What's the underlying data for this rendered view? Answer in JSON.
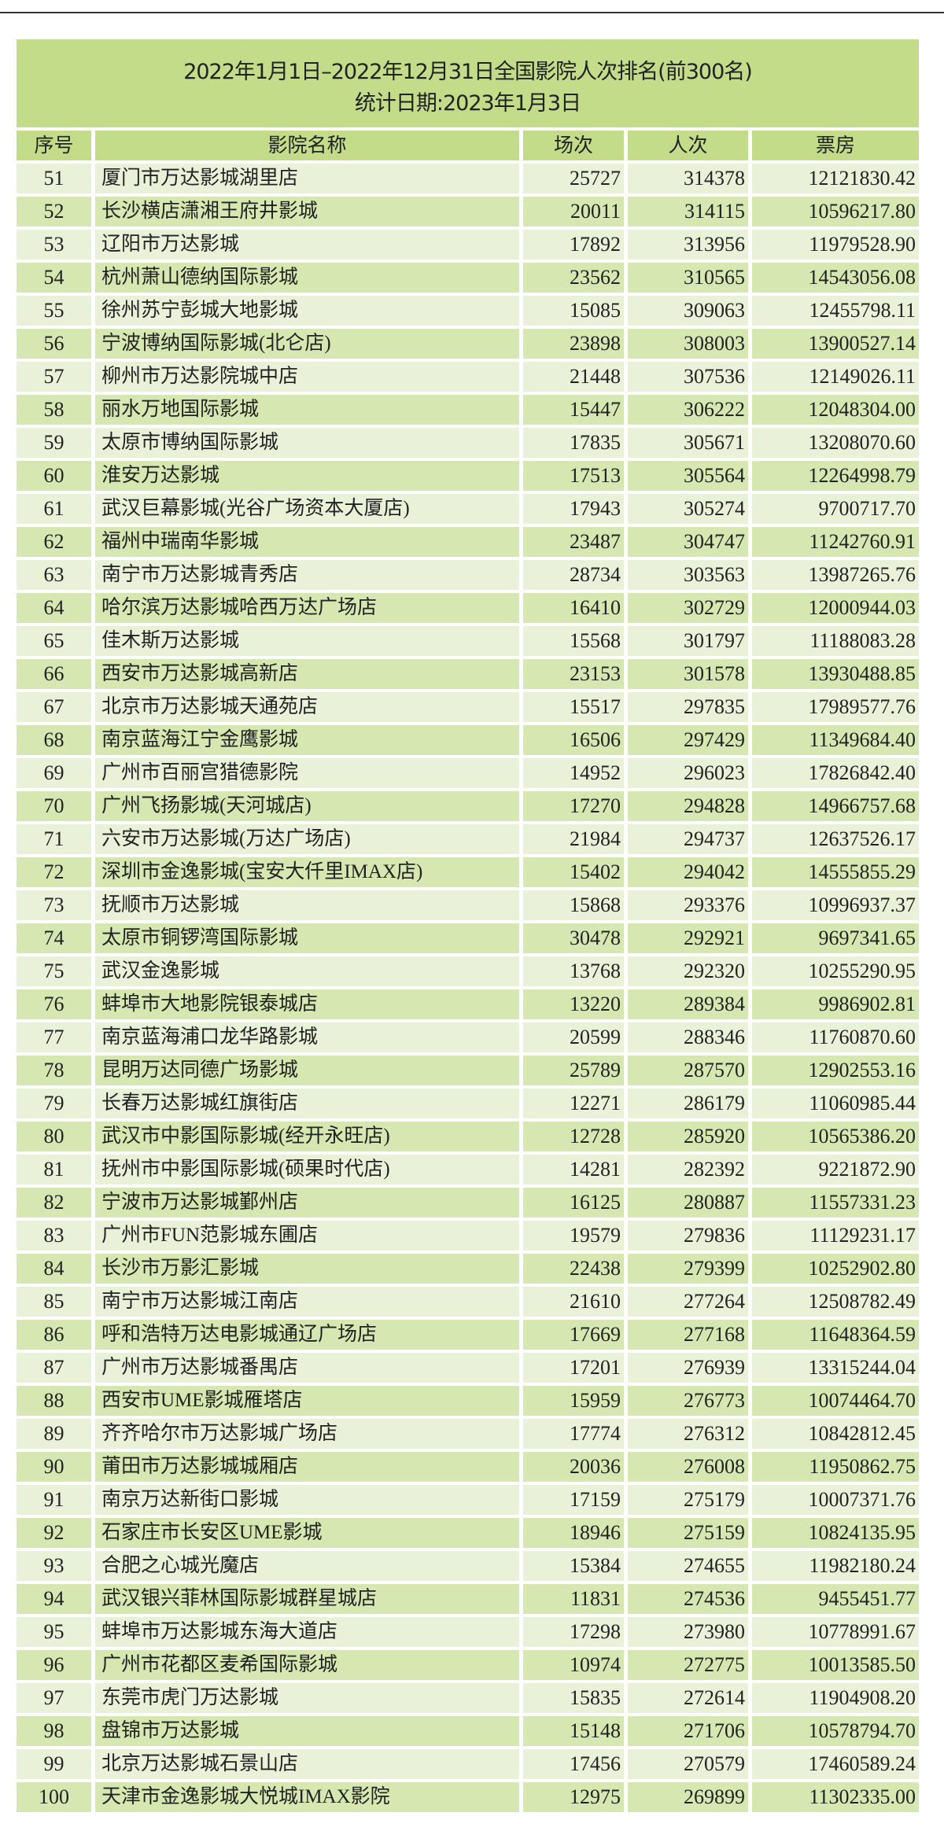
{
  "title": "2022年1月1日–2022年12月31日全国影院人次排名(前300名)",
  "subtitle": "统计日期:2023年1月3日",
  "colors": {
    "title_bg": "#c2dc8a",
    "row_dark": "#d6e7b1",
    "row_light": "#e9f2d9"
  },
  "headers": [
    "序号",
    "影院名称",
    "场次",
    "人次",
    "票房"
  ],
  "rows": [
    [
      "51",
      "厦门市万达影城湖里店",
      "25727",
      "314378",
      "12121830.42"
    ],
    [
      "52",
      "长沙横店潇湘王府井影城",
      "20011",
      "314115",
      "10596217.80"
    ],
    [
      "53",
      "辽阳市万达影城",
      "17892",
      "313956",
      "11979528.90"
    ],
    [
      "54",
      "杭州萧山德纳国际影城",
      "23562",
      "310565",
      "14543056.08"
    ],
    [
      "55",
      "徐州苏宁彭城大地影城",
      "15085",
      "309063",
      "12455798.11"
    ],
    [
      "56",
      "宁波博纳国际影城(北仑店)",
      "23898",
      "308003",
      "13900527.14"
    ],
    [
      "57",
      "柳州市万达影院城中店",
      "21448",
      "307536",
      "12149026.11"
    ],
    [
      "58",
      "丽水万地国际影城",
      "15447",
      "306222",
      "12048304.00"
    ],
    [
      "59",
      "太原市博纳国际影城",
      "17835",
      "305671",
      "13208070.60"
    ],
    [
      "60",
      "淮安万达影城",
      "17513",
      "305564",
      "12264998.79"
    ],
    [
      "61",
      "武汉巨幕影城(光谷广场资本大厦店)",
      "17943",
      "305274",
      "9700717.70"
    ],
    [
      "62",
      "福州中瑞南华影城",
      "23487",
      "304747",
      "11242760.91"
    ],
    [
      "63",
      "南宁市万达影城青秀店",
      "28734",
      "303563",
      "13987265.76"
    ],
    [
      "64",
      "哈尔滨万达影城哈西万达广场店",
      "16410",
      "302729",
      "12000944.03"
    ],
    [
      "65",
      "佳木斯万达影城",
      "15568",
      "301797",
      "11188083.28"
    ],
    [
      "66",
      "西安市万达影城高新店",
      "23153",
      "301578",
      "13930488.85"
    ],
    [
      "67",
      "北京市万达影城天通苑店",
      "15517",
      "297835",
      "17989577.76"
    ],
    [
      "68",
      "南京蓝海江宁金鹰影城",
      "16506",
      "297429",
      "11349684.40"
    ],
    [
      "69",
      "广州市百丽宫猎德影院",
      "14952",
      "296023",
      "17826842.40"
    ],
    [
      "70",
      "广州飞扬影城(天河城店)",
      "17270",
      "294828",
      "14966757.68"
    ],
    [
      "71",
      "六安市万达影城(万达广场店)",
      "21984",
      "294737",
      "12637526.17"
    ],
    [
      "72",
      "深圳市金逸影城(宝安大仟里IMAX店)",
      "15402",
      "294042",
      "14555855.29"
    ],
    [
      "73",
      "抚顺市万达影城",
      "15868",
      "293376",
      "10996937.37"
    ],
    [
      "74",
      "太原市铜锣湾国际影城",
      "30478",
      "292921",
      "9697341.65"
    ],
    [
      "75",
      "武汉金逸影城",
      "13768",
      "292320",
      "10255290.95"
    ],
    [
      "76",
      "蚌埠市大地影院银泰城店",
      "13220",
      "289384",
      "9986902.81"
    ],
    [
      "77",
      "南京蓝海浦口龙华路影城",
      "20599",
      "288346",
      "11760870.60"
    ],
    [
      "78",
      "昆明万达同德广场影城",
      "25789",
      "287570",
      "12902553.16"
    ],
    [
      "79",
      "长春万达影城红旗街店",
      "12271",
      "286179",
      "11060985.44"
    ],
    [
      "80",
      "武汉市中影国际影城(经开永旺店)",
      "12728",
      "285920",
      "10565386.20"
    ],
    [
      "81",
      "抚州市中影国际影城(硕果时代店)",
      "14281",
      "282392",
      "9221872.90"
    ],
    [
      "82",
      "宁波市万达影城鄞州店",
      "16125",
      "280887",
      "11557331.23"
    ],
    [
      "83",
      "广州市FUN范影城东圃店",
      "19579",
      "279836",
      "11129231.17"
    ],
    [
      "84",
      "长沙市万影汇影城",
      "22438",
      "279399",
      "10252902.80"
    ],
    [
      "85",
      "南宁市万达影城江南店",
      "21610",
      "277264",
      "12508782.49"
    ],
    [
      "86",
      "呼和浩特万达电影城通辽广场店",
      "17669",
      "277168",
      "11648364.59"
    ],
    [
      "87",
      "广州市万达影城番禺店",
      "17201",
      "276939",
      "13315244.04"
    ],
    [
      "88",
      "西安市UME影城雁塔店",
      "15959",
      "276773",
      "10074464.70"
    ],
    [
      "89",
      "齐齐哈尔市万达影城广场店",
      "17774",
      "276312",
      "10842812.45"
    ],
    [
      "90",
      "莆田市万达影城城厢店",
      "20036",
      "276008",
      "11950862.75"
    ],
    [
      "91",
      "南京万达新街口影城",
      "17159",
      "275179",
      "10007371.76"
    ],
    [
      "92",
      "石家庄市长安区UME影城",
      "18946",
      "275159",
      "10824135.95"
    ],
    [
      "93",
      "合肥之心城光魔店",
      "15384",
      "274655",
      "11982180.24"
    ],
    [
      "94",
      "武汉银兴菲林国际影城群星城店",
      "11831",
      "274536",
      "9455451.77"
    ],
    [
      "95",
      "蚌埠市万达影城东海大道店",
      "17298",
      "273980",
      "10778991.67"
    ],
    [
      "96",
      "广州市花都区麦希国际影城",
      "10974",
      "272775",
      "10013585.50"
    ],
    [
      "97",
      "东莞市虎门万达影城",
      "15835",
      "272614",
      "11904908.20"
    ],
    [
      "98",
      "盘锦市万达影城",
      "15148",
      "271706",
      "10578794.70"
    ],
    [
      "99",
      "北京万达影城石景山店",
      "17456",
      "270579",
      "17460589.24"
    ],
    [
      "100",
      "天津市金逸影城大悦城IMAX影院",
      "12975",
      "269899",
      "11302335.00"
    ]
  ]
}
